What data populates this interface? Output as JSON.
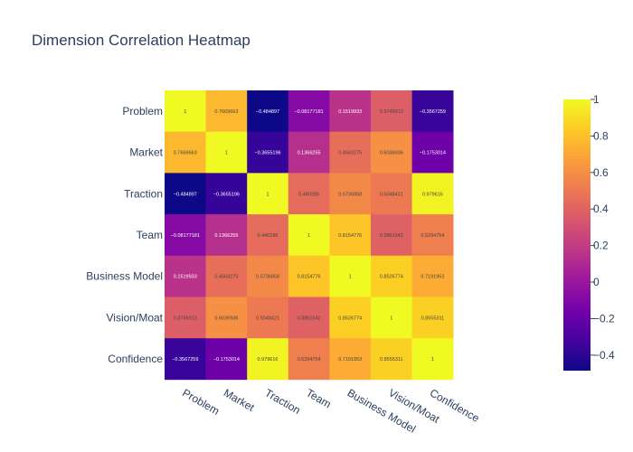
{
  "chart_data": {
    "type": "heatmap",
    "title": "Dimension Correlation Heatmap",
    "x_categories": [
      "Problem",
      "Market",
      "Traction",
      "Team",
      "Business Model",
      "Vision/Moat",
      "Confidence"
    ],
    "y_categories": [
      "Problem",
      "Market",
      "Traction",
      "Team",
      "Business Model",
      "Vision/Moat",
      "Confidence"
    ],
    "values": [
      [
        1,
        0.7669663,
        -0.484897,
        -0.08177181,
        0.1519933,
        0.3749913,
        -0.3567259
      ],
      [
        0.7669663,
        1,
        -0.3655196,
        0.1366255,
        0.4563275,
        0.6036936,
        -0.1753014
      ],
      [
        -0.484897,
        -0.3655196,
        1,
        0.440285,
        0.5736858,
        0.5048421,
        0.979616
      ],
      [
        -0.08177181,
        0.1366255,
        0.440285,
        1,
        0.8154776,
        0.3861542,
        0.5294754
      ],
      [
        0.1519933,
        0.4563275,
        0.5736858,
        0.8154776,
        1,
        0.8526774,
        0.7191953
      ],
      [
        0.3749913,
        0.6036936,
        0.5048421,
        0.3861542,
        0.8526774,
        1,
        0.8555311
      ],
      [
        -0.3567259,
        -0.1753014,
        0.979616,
        0.5294754,
        0.7191953,
        0.8555311,
        1
      ]
    ],
    "cell_text": [
      [
        "1",
        "0.7669663",
        "−0.484897",
        "−0.08177181",
        "0.1519933",
        "0.3749913",
        "−0.3567259"
      ],
      [
        "0.7669663",
        "1",
        "−0.3655196",
        "0.1366255",
        "0.4563275",
        "0.6036936",
        "−0.1753014"
      ],
      [
        "−0.484897",
        "−0.3655196",
        "1",
        "0.440285",
        "0.5736858",
        "0.5048421",
        "0.979616"
      ],
      [
        "−0.08177181",
        "0.1366255",
        "0.440285",
        "1",
        "0.8154776",
        "0.3861542",
        "0.5294754"
      ],
      [
        "0.1519933",
        "0.4563275",
        "0.5736858",
        "0.8154776",
        "1",
        "0.8526774",
        "0.7191953"
      ],
      [
        "0.3749913",
        "0.6036936",
        "0.5048421",
        "0.3861542",
        "0.8526774",
        "1",
        "0.8555311"
      ],
      [
        "−0.3567259",
        "−0.1753014",
        "0.979616",
        "0.5294754",
        "0.7191953",
        "0.8555311",
        "1"
      ]
    ],
    "zmin": -0.484897,
    "zmax": 1,
    "colorscale": "plasma",
    "colorbar_ticks": [
      1,
      0.8,
      0.6,
      0.4,
      0.2,
      0,
      -0.2,
      -0.4
    ],
    "colorbar_tick_labels": [
      "1",
      "0.8",
      "0.6",
      "0.4",
      "0.2",
      "0",
      "−0.2",
      "−0.4"
    ],
    "legend_position": "right"
  }
}
